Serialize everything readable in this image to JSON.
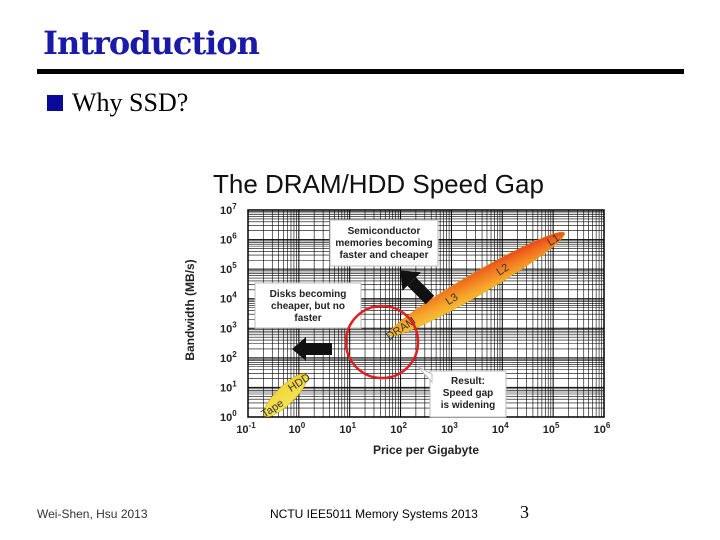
{
  "slide": {
    "title": "Introduction",
    "bullet": "Why SSD?",
    "footer_left": "Wei-Shen, Hsu 2013",
    "footer_center": "NCTU IEE5011 Memory Systems 2013",
    "page_number": "3"
  },
  "chart_data": {
    "type": "scatter",
    "title": "The DRAM/HDD Speed Gap",
    "xlabel": "Price per Gigabyte",
    "ylabel": "Bandwidth (MB/s)",
    "x_scale": "log",
    "y_scale": "log",
    "xlim": [
      0.1,
      1000000
    ],
    "ylim": [
      1,
      10000000
    ],
    "x_ticks": [
      {
        "base": "10",
        "exp": "-1"
      },
      {
        "base": "10",
        "exp": "0"
      },
      {
        "base": "10",
        "exp": "1"
      },
      {
        "base": "10",
        "exp": "2"
      },
      {
        "base": "10",
        "exp": "3"
      },
      {
        "base": "10",
        "exp": "4"
      },
      {
        "base": "10",
        "exp": "5"
      },
      {
        "base": "10",
        "exp": "6"
      }
    ],
    "y_ticks": [
      {
        "base": "10",
        "exp": "0"
      },
      {
        "base": "10",
        "exp": "1"
      },
      {
        "base": "10",
        "exp": "2"
      },
      {
        "base": "10",
        "exp": "3"
      },
      {
        "base": "10",
        "exp": "4"
      },
      {
        "base": "10",
        "exp": "5"
      },
      {
        "base": "10",
        "exp": "6"
      },
      {
        "base": "10",
        "exp": "7"
      }
    ],
    "grid": true,
    "series": [
      {
        "name": "Tape",
        "x": 0.3,
        "y": 2,
        "color": "#f5e04a"
      },
      {
        "name": "HDD",
        "x": 1,
        "y": 15,
        "color": "#f5e04a"
      },
      {
        "name": "DRAM",
        "x": 100,
        "y": 1000,
        "color": "#f7b733"
      },
      {
        "name": "L3",
        "x": 1000,
        "y": 10000,
        "color": "#f59a23"
      },
      {
        "name": "L2",
        "x": 10000,
        "y": 100000,
        "color": "#f06a1c"
      },
      {
        "name": "L1",
        "x": 100000,
        "y": 1000000,
        "color": "#e8262a"
      }
    ],
    "annotations": [
      {
        "lines": [
          "Semiconductor",
          "memories becoming",
          "faster and cheaper"
        ]
      },
      {
        "lines": [
          "Disks becoming",
          "cheaper, but no",
          "faster"
        ]
      },
      {
        "lines": [
          "Result:",
          "Speed gap",
          "is widening"
        ]
      }
    ],
    "colors": {
      "grid": "#000000",
      "highlight_circle": "#e02020",
      "arrow": "#111111",
      "box_border": "#bbbbbb"
    }
  }
}
